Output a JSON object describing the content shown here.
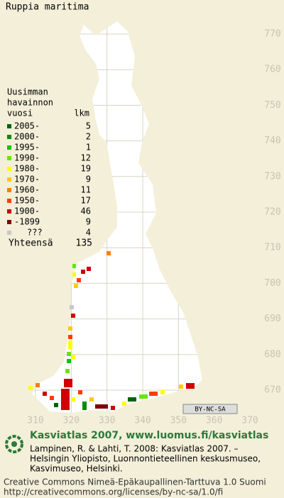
{
  "title": "Ruppia maritima",
  "legend": {
    "heading": [
      "Uusimman",
      "havainnon"
    ],
    "col_headers": [
      "vuosi",
      "lkm"
    ],
    "rows": [
      {
        "label": "2005-",
        "count": 5,
        "color": "#006400"
      },
      {
        "label": "2000-",
        "count": 2,
        "color": "#008c00"
      },
      {
        "label": "1995-",
        "count": 1,
        "color": "#00c800"
      },
      {
        "label": "1990-",
        "count": 12,
        "color": "#66e600"
      },
      {
        "label": "1980-",
        "count": 19,
        "color": "#ffff00"
      },
      {
        "label": "1970-",
        "count": 9,
        "color": "#ffcc00"
      },
      {
        "label": "1960-",
        "count": 11,
        "color": "#ff8000"
      },
      {
        "label": "1950-",
        "count": 17,
        "color": "#ff3c00"
      },
      {
        "label": "1900-",
        "count": 46,
        "color": "#d00000"
      },
      {
        "label": "-1899",
        "count": 9,
        "color": "#800000"
      },
      {
        "label": "???",
        "count": 4,
        "color": "#c8c8c8"
      }
    ],
    "total_label": "Yhteensä",
    "total": 135
  },
  "grid": {
    "north": [
      770,
      760,
      750,
      740,
      730,
      720,
      710,
      700,
      690,
      680,
      670
    ],
    "east": [
      310,
      320,
      330,
      340,
      350,
      360,
      370
    ]
  },
  "license_badge": "BY-NC-SA",
  "footer": {
    "site": "Kasviatlas 2007, www.luomus.fi/kasviatlas",
    "citation": [
      "Lampinen, R. & Lahti, T. 2008: Kasviatlas 2007. –",
      "Helsingin Yliopisto, Luonnontieteellinen keskusmuseo,",
      "Kasvimuseo, Helsinki."
    ],
    "license": [
      "Creative Commons Nimeä-Epäkaupallinen-Tarttuva 1.0 Suomi",
      "http://creativecommons.org/licenses/by-nc-sa/1.0/fi"
    ]
  }
}
